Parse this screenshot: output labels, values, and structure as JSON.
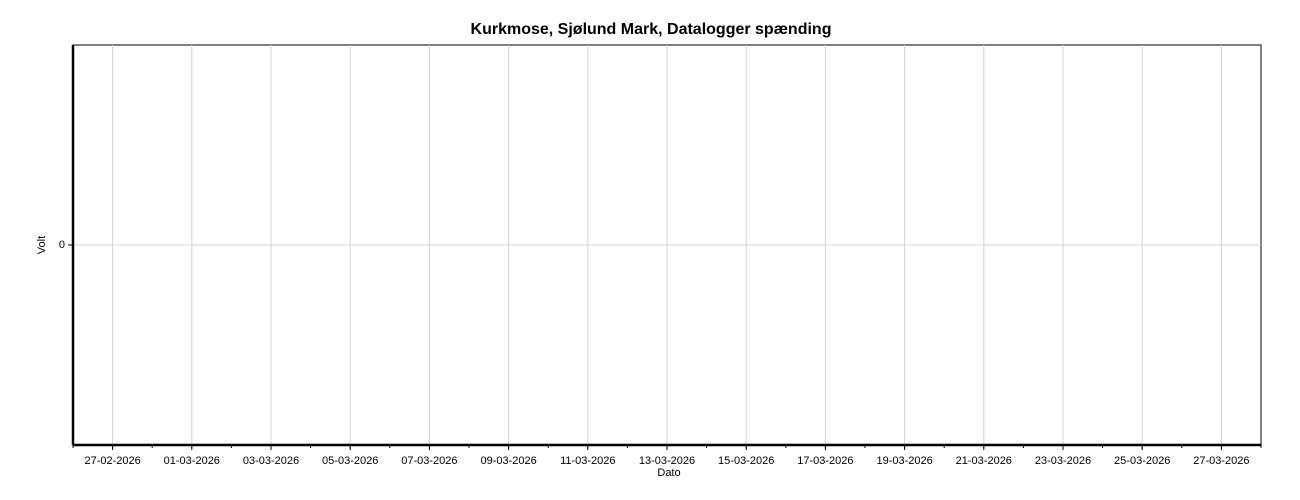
{
  "chart_data": {
    "type": "line",
    "title": "Kurkmose, Sjølund Mark, Datalogger spænding",
    "xlabel": "Dato",
    "ylabel": "Volt",
    "xlim": [
      "2026-02-26",
      "2026-03-28"
    ],
    "xticks": [
      {
        "value": "2026-02-27",
        "label": "27-02-2026"
      },
      {
        "value": "2026-03-01",
        "label": "01-03-2026"
      },
      {
        "value": "2026-03-03",
        "label": "03-03-2026"
      },
      {
        "value": "2026-03-05",
        "label": "05-03-2026"
      },
      {
        "value": "2026-03-07",
        "label": "07-03-2026"
      },
      {
        "value": "2026-03-09",
        "label": "09-03-2026"
      },
      {
        "value": "2026-03-11",
        "label": "11-03-2026"
      },
      {
        "value": "2026-03-13",
        "label": "13-03-2026"
      },
      {
        "value": "2026-03-15",
        "label": "15-03-2026"
      },
      {
        "value": "2026-03-17",
        "label": "17-03-2026"
      },
      {
        "value": "2026-03-19",
        "label": "19-03-2026"
      },
      {
        "value": "2026-03-21",
        "label": "21-03-2026"
      },
      {
        "value": "2026-03-23",
        "label": "23-03-2026"
      },
      {
        "value": "2026-03-25",
        "label": "25-03-2026"
      },
      {
        "value": "2026-03-27",
        "label": "27-03-2026"
      }
    ],
    "ylim": [
      -1,
      1
    ],
    "yticks": [
      0
    ],
    "grid": true,
    "series": []
  }
}
